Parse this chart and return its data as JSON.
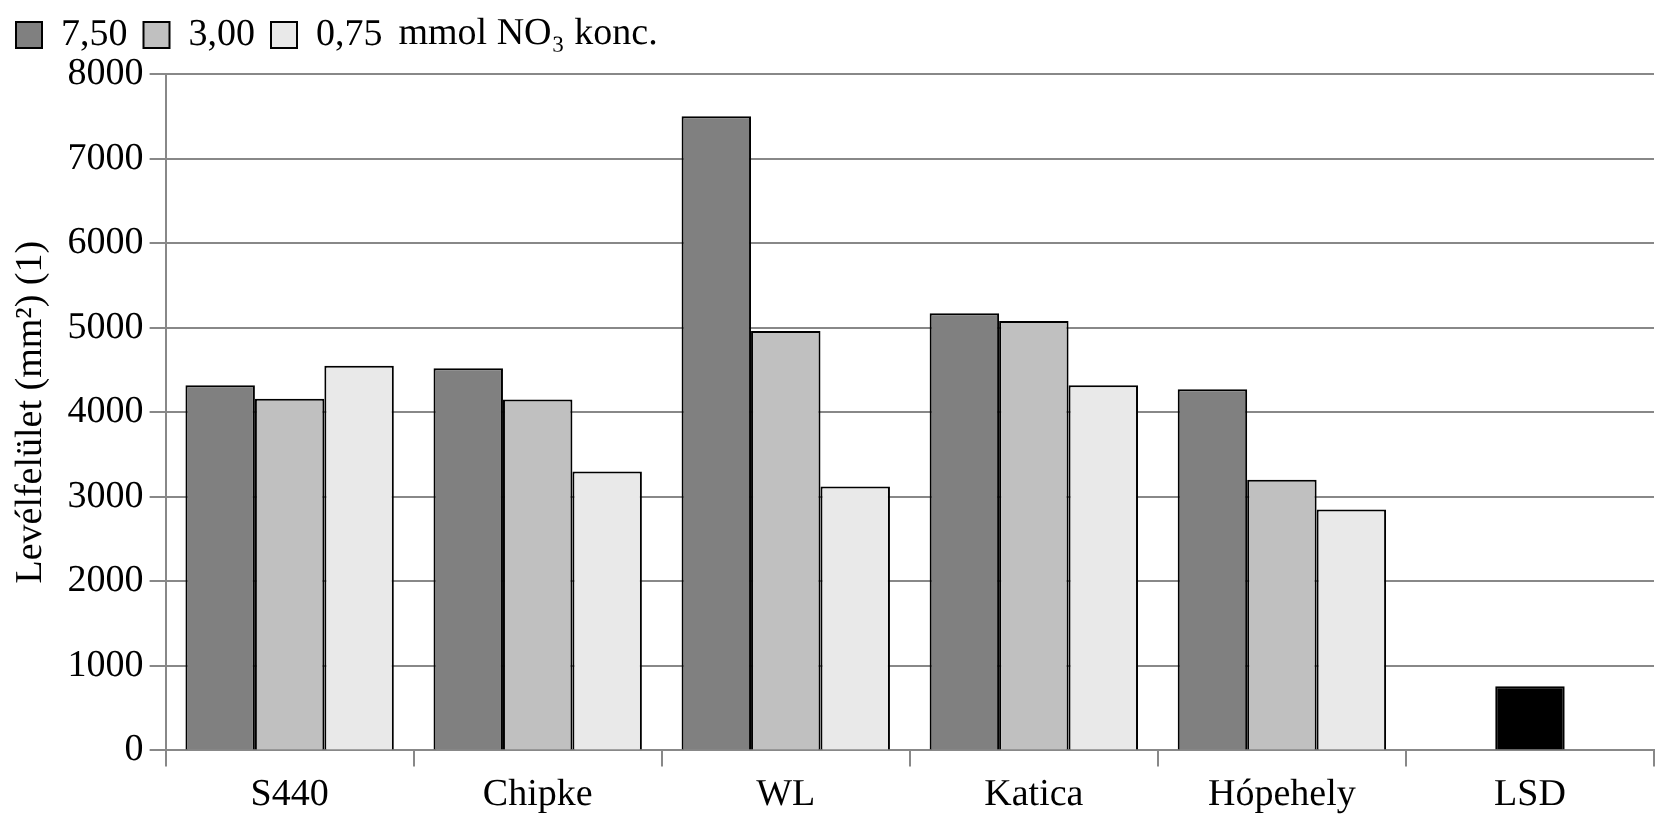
{
  "chart_data": {
    "type": "bar",
    "ylabel": "Levélfelület (mm²) (1)",
    "legend_title": "mmol NO₃ konc.",
    "categories": [
      "S440",
      "Chipke",
      "WL",
      "Katica",
      "Hópehely",
      "LSD"
    ],
    "series": [
      {
        "name": "7,50",
        "color": "#808080",
        "values": [
          4320,
          4520,
          7500,
          5170,
          4270,
          null
        ]
      },
      {
        "name": "3,00",
        "color": "#c0c0c0",
        "values": [
          4160,
          4150,
          4960,
          5080,
          3200,
          null
        ]
      },
      {
        "name": "0,75",
        "color": "#e9e9e9",
        "values": [
          4550,
          3300,
          3120,
          4320,
          2850,
          null
        ]
      },
      {
        "color": "#000000",
        "values": [
          null,
          null,
          null,
          null,
          null,
          760
        ]
      }
    ],
    "ylim": [
      0,
      8000
    ],
    "yticks": [
      0,
      1000,
      2000,
      3000,
      4000,
      5000,
      6000,
      7000,
      8000
    ],
    "grid": "y",
    "legend": "top"
  }
}
